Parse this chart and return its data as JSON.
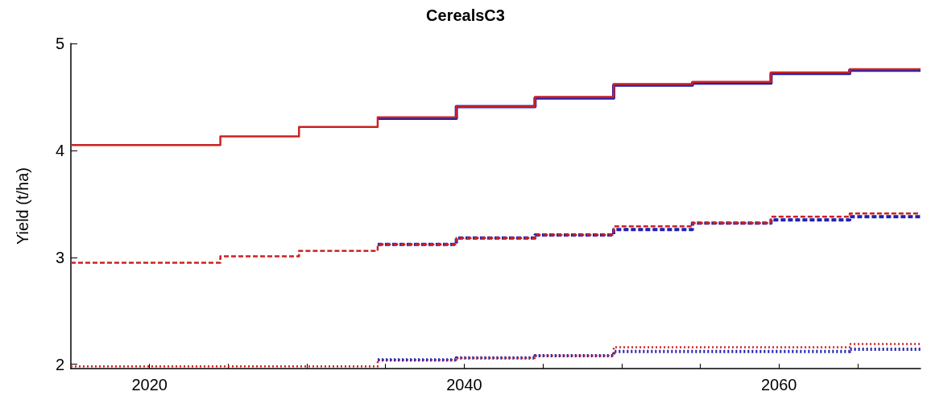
{
  "chart_data": {
    "type": "step",
    "title": "CerealsC3",
    "ylabel": "Yield (t/ha)",
    "xlim": [
      2015,
      2069
    ],
    "xticks": [
      2020,
      {
        "value": 2025,
        "label": null
      },
      {
        "value": 2030,
        "label": null
      },
      {
        "value": 2035,
        "label": null
      },
      2040,
      {
        "value": 2045,
        "label": null
      },
      {
        "value": 2050,
        "label": null
      },
      {
        "value": 2055,
        "label": null
      },
      2060,
      {
        "value": 2065,
        "label": null
      }
    ],
    "ylim": [
      1.96,
      5
    ],
    "yticks": [
      2,
      3,
      4,
      5
    ],
    "grid": false,
    "marker": "none",
    "series": [
      {
        "color": "#2020b0",
        "line_style": "solid",
        "x": [
          2034.5,
          2039.5,
          2044.5,
          2049.5,
          2054.5,
          2059.5,
          2064.5,
          2069
        ],
        "values": [
          4.3,
          4.41,
          4.49,
          4.61,
          4.63,
          4.72,
          4.75,
          4.75
        ]
      },
      {
        "color": "#cc2222",
        "line_style": "solid",
        "x": [
          2015,
          2024.5,
          2029.5,
          2034.5,
          2039.5,
          2044.5,
          2049.5,
          2054.5,
          2059.5,
          2064.5,
          2069
        ],
        "values": [
          4.05,
          4.13,
          4.22,
          4.31,
          4.41,
          4.5,
          4.62,
          4.64,
          4.73,
          4.76,
          4.76
        ]
      },
      {
        "color": "#2020b0",
        "line_style": "dashed",
        "x": [
          2034.5,
          2039.5,
          2044.5,
          2049.5,
          2054.5,
          2059.5,
          2064.5,
          2069
        ],
        "values": [
          3.12,
          3.18,
          3.21,
          3.26,
          3.32,
          3.35,
          3.38,
          3.38
        ]
      },
      {
        "color": "#cc2222",
        "line_style": "dashed",
        "x": [
          2015,
          2024.5,
          2029.5,
          2034.5,
          2039.5,
          2044.5,
          2049.5,
          2054.5,
          2059.5,
          2064.5,
          2069
        ],
        "values": [
          2.95,
          3.01,
          3.06,
          3.12,
          3.18,
          3.21,
          3.29,
          3.32,
          3.38,
          3.41,
          3.41
        ]
      },
      {
        "color": "#2020b0",
        "line_style": "dotted",
        "x": [
          2034.5,
          2039.5,
          2044.5,
          2049.5,
          2054.5,
          2059.5,
          2064.5,
          2069
        ],
        "values": [
          2.04,
          2.06,
          2.08,
          2.12,
          2.12,
          2.12,
          2.14,
          2.14
        ]
      },
      {
        "color": "#cc2222",
        "line_style": "dotted",
        "x": [
          2015,
          2024.5,
          2029.5,
          2034.5,
          2039.5,
          2044.5,
          2049.5,
          2054.5,
          2059.5,
          2064.5,
          2069
        ],
        "values": [
          1.98,
          1.98,
          1.98,
          2.04,
          2.06,
          2.08,
          2.16,
          2.16,
          2.16,
          2.19,
          2.19
        ]
      }
    ]
  }
}
